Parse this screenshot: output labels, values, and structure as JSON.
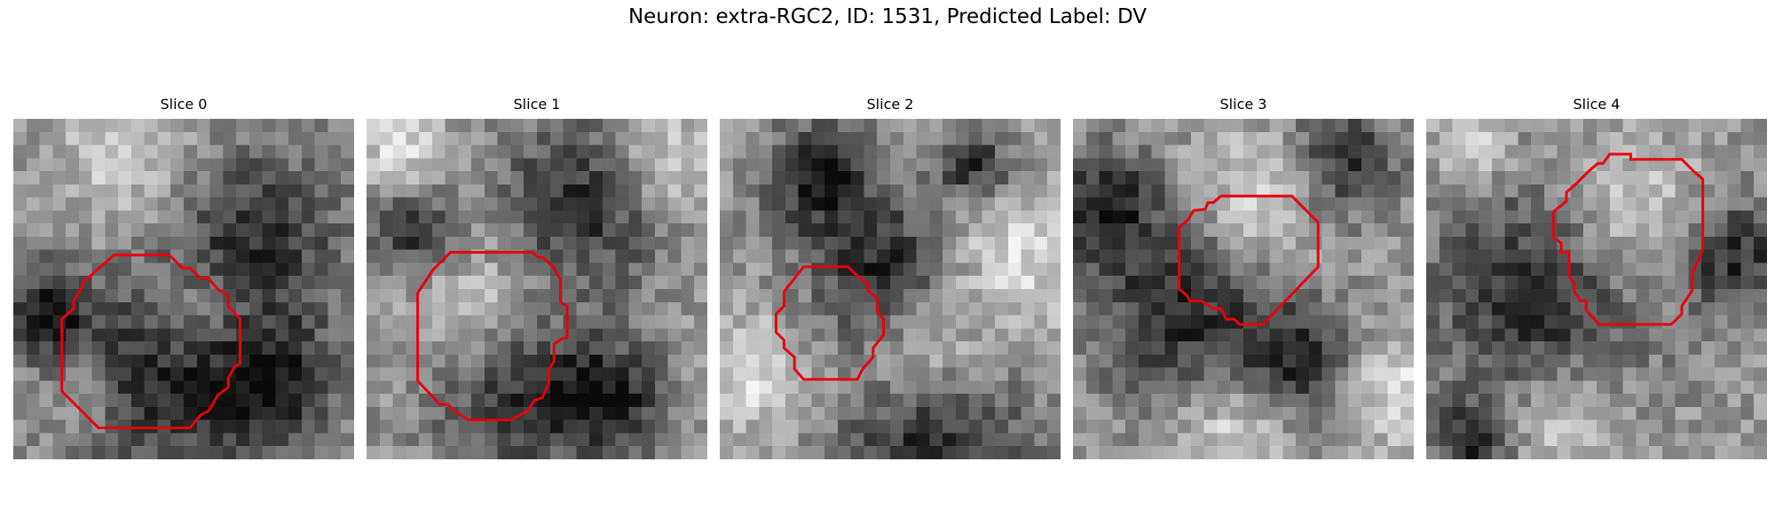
{
  "figure": {
    "title": "Neuron: extra-RGC2, ID: 1531, Predicted Label: DV",
    "outline_color": "#e8000b",
    "colormap": "gray"
  },
  "panels": [
    {
      "title": "Slice 0",
      "outline": [
        [
          7.7,
          10.4
        ],
        [
          11.9,
          10.4
        ],
        [
          12.9,
          11.4
        ],
        [
          13.5,
          11.4
        ],
        [
          14.3,
          12.2
        ],
        [
          14.9,
          12.2
        ],
        [
          15.6,
          13.0
        ],
        [
          16.4,
          13.5
        ],
        [
          16.4,
          14.3
        ],
        [
          17.3,
          15.3
        ],
        [
          17.3,
          18.7
        ],
        [
          16.9,
          18.9
        ],
        [
          16.4,
          19.8
        ],
        [
          16.4,
          20.5
        ],
        [
          15.6,
          21.1
        ],
        [
          14.9,
          22.3
        ],
        [
          14.3,
          22.6
        ],
        [
          13.5,
          23.6
        ],
        [
          6.5,
          23.6
        ],
        [
          3.7,
          20.8
        ],
        [
          3.7,
          15.3
        ],
        [
          4.6,
          14.5
        ],
        [
          4.6,
          13.9
        ],
        [
          5.3,
          12.8
        ],
        [
          5.3,
          12.5
        ]
      ]
    },
    {
      "title": "Slice 1",
      "outline": [
        [
          6.4,
          10.2
        ],
        [
          12.7,
          10.2
        ],
        [
          13.0,
          10.5
        ],
        [
          13.5,
          10.6
        ],
        [
          14.0,
          11.1
        ],
        [
          14.2,
          11.2
        ],
        [
          14.5,
          11.8
        ],
        [
          14.8,
          12.2
        ],
        [
          14.8,
          14.0
        ],
        [
          15.3,
          14.3
        ],
        [
          15.3,
          16.7
        ],
        [
          14.9,
          16.8
        ],
        [
          14.3,
          17.2
        ],
        [
          14.3,
          18.5
        ],
        [
          13.9,
          19.2
        ],
        [
          13.9,
          20.2
        ],
        [
          13.4,
          21.3
        ],
        [
          12.8,
          21.5
        ],
        [
          12.3,
          22.3
        ],
        [
          11.0,
          23.0
        ],
        [
          7.8,
          23.0
        ],
        [
          6.7,
          22.3
        ],
        [
          6.2,
          21.8
        ],
        [
          5.6,
          21.8
        ],
        [
          3.9,
          20.0
        ],
        [
          3.9,
          13.3
        ],
        [
          5.1,
          11.5
        ]
      ]
    },
    {
      "title": "Slice 2",
      "outline": [
        [
          6.4,
          11.3
        ],
        [
          9.8,
          11.3
        ],
        [
          10.5,
          12.0
        ],
        [
          11.3,
          12.6
        ],
        [
          11.3,
          13.1
        ],
        [
          12.0,
          13.7
        ],
        [
          12.0,
          14.7
        ],
        [
          12.5,
          15.3
        ],
        [
          12.5,
          16.5
        ],
        [
          11.7,
          17.5
        ],
        [
          11.7,
          18.2
        ],
        [
          10.9,
          19.1
        ],
        [
          10.5,
          19.9
        ],
        [
          6.4,
          19.9
        ],
        [
          5.7,
          19.1
        ],
        [
          5.7,
          18.2
        ],
        [
          4.9,
          17.5
        ],
        [
          4.9,
          16.9
        ],
        [
          4.3,
          16.3
        ],
        [
          4.3,
          14.9
        ],
        [
          4.9,
          14.3
        ],
        [
          4.9,
          13.2
        ]
      ]
    },
    {
      "title": "Slice 3",
      "outline": [
        [
          12.4,
          5.9
        ],
        [
          16.7,
          5.9
        ],
        [
          18.7,
          7.9
        ],
        [
          18.7,
          11.3
        ],
        [
          14.5,
          15.7
        ],
        [
          12.7,
          15.7
        ],
        [
          12.3,
          15.3
        ],
        [
          11.7,
          15.3
        ],
        [
          11.5,
          14.9
        ],
        [
          11.3,
          14.5
        ],
        [
          10.7,
          14.5
        ],
        [
          9.8,
          13.9
        ],
        [
          8.9,
          13.9
        ],
        [
          8.7,
          13.5
        ],
        [
          8.1,
          13.0
        ],
        [
          8.1,
          8.3
        ],
        [
          8.8,
          7.7
        ],
        [
          9.2,
          7.0
        ],
        [
          10.1,
          6.9
        ],
        [
          10.3,
          6.4
        ],
        [
          10.7,
          6.4
        ],
        [
          11.3,
          5.9
        ]
      ]
    },
    {
      "title": "Slice 4",
      "outline": [
        [
          15.6,
          3.1
        ],
        [
          19.5,
          3.1
        ],
        [
          20.5,
          4.1
        ],
        [
          21.1,
          4.6
        ],
        [
          21.1,
          10.0
        ],
        [
          20.3,
          11.8
        ],
        [
          20.3,
          13.1
        ],
        [
          19.7,
          14.0
        ],
        [
          19.5,
          14.3
        ],
        [
          19.5,
          14.9
        ],
        [
          18.7,
          15.7
        ],
        [
          13.2,
          15.7
        ],
        [
          12.2,
          14.6
        ],
        [
          12.2,
          13.9
        ],
        [
          11.8,
          13.9
        ],
        [
          11.3,
          13.2
        ],
        [
          11.3,
          12.6
        ],
        [
          10.9,
          12.0
        ],
        [
          10.9,
          10.2
        ],
        [
          10.3,
          10.2
        ],
        [
          10.3,
          9.5
        ],
        [
          9.7,
          9.0
        ],
        [
          9.7,
          7.1
        ],
        [
          10.7,
          6.3
        ],
        [
          10.7,
          5.6
        ],
        [
          11.3,
          5.1
        ],
        [
          12.4,
          4.0
        ],
        [
          13.1,
          3.4
        ],
        [
          13.5,
          3.4
        ],
        [
          14.0,
          2.7
        ],
        [
          15.6,
          2.7
        ]
      ]
    }
  ]
}
